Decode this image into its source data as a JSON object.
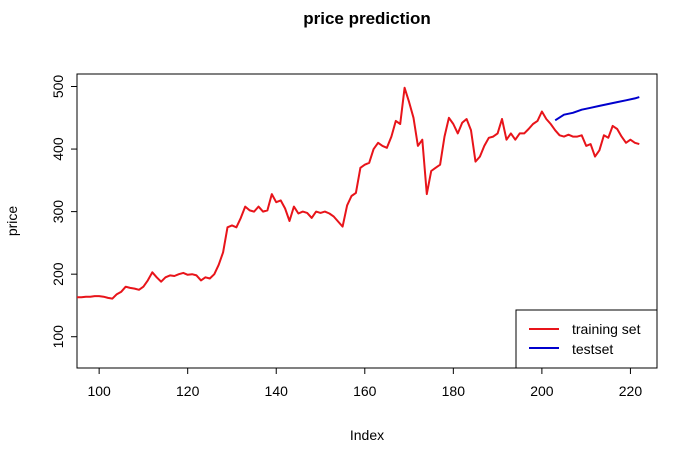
{
  "chart_data": {
    "type": "line",
    "title": "price prediction",
    "xlabel": "Index",
    "ylabel": "price",
    "xlim": [
      95,
      226
    ],
    "ylim": [
      50,
      520
    ],
    "xticks": [
      100,
      120,
      140,
      160,
      180,
      200,
      220
    ],
    "yticks": [
      100,
      200,
      300,
      400,
      500
    ],
    "grid": false,
    "legend_position": "bottom-right",
    "series": [
      {
        "name": "training set",
        "color": "#e8141a",
        "points": [
          [
            95,
            163
          ],
          [
            96,
            163
          ],
          [
            97,
            164
          ],
          [
            98,
            164
          ],
          [
            99,
            165
          ],
          [
            100,
            165
          ],
          [
            101,
            164
          ],
          [
            102,
            162
          ],
          [
            103,
            161
          ],
          [
            104,
            168
          ],
          [
            105,
            172
          ],
          [
            106,
            180
          ],
          [
            107,
            178
          ],
          [
            108,
            177
          ],
          [
            109,
            175
          ],
          [
            110,
            180
          ],
          [
            111,
            190
          ],
          [
            112,
            203
          ],
          [
            113,
            195
          ],
          [
            114,
            188
          ],
          [
            115,
            195
          ],
          [
            116,
            198
          ],
          [
            117,
            197
          ],
          [
            118,
            200
          ],
          [
            119,
            202
          ],
          [
            120,
            199
          ],
          [
            121,
            200
          ],
          [
            122,
            198
          ],
          [
            123,
            190
          ],
          [
            124,
            195
          ],
          [
            125,
            193
          ],
          [
            126,
            200
          ],
          [
            127,
            215
          ],
          [
            128,
            235
          ],
          [
            129,
            275
          ],
          [
            130,
            278
          ],
          [
            131,
            275
          ],
          [
            132,
            290
          ],
          [
            133,
            308
          ],
          [
            134,
            302
          ],
          [
            135,
            300
          ],
          [
            136,
            308
          ],
          [
            137,
            300
          ],
          [
            138,
            302
          ],
          [
            139,
            328
          ],
          [
            140,
            315
          ],
          [
            141,
            318
          ],
          [
            142,
            305
          ],
          [
            143,
            285
          ],
          [
            144,
            308
          ],
          [
            145,
            297
          ],
          [
            146,
            300
          ],
          [
            147,
            298
          ],
          [
            148,
            290
          ],
          [
            149,
            300
          ],
          [
            150,
            298
          ],
          [
            151,
            300
          ],
          [
            152,
            297
          ],
          [
            153,
            292
          ],
          [
            154,
            284
          ],
          [
            155,
            276
          ],
          [
            156,
            310
          ],
          [
            157,
            325
          ],
          [
            158,
            330
          ],
          [
            159,
            370
          ],
          [
            160,
            375
          ],
          [
            161,
            378
          ],
          [
            162,
            400
          ],
          [
            163,
            410
          ],
          [
            164,
            405
          ],
          [
            165,
            402
          ],
          [
            166,
            420
          ],
          [
            167,
            445
          ],
          [
            168,
            440
          ],
          [
            169,
            498
          ],
          [
            170,
            475
          ],
          [
            171,
            450
          ],
          [
            172,
            405
          ],
          [
            173,
            415
          ],
          [
            174,
            328
          ],
          [
            175,
            365
          ],
          [
            176,
            370
          ],
          [
            177,
            375
          ],
          [
            178,
            420
          ],
          [
            179,
            450
          ],
          [
            180,
            440
          ],
          [
            181,
            425
          ],
          [
            182,
            442
          ],
          [
            183,
            448
          ],
          [
            184,
            430
          ],
          [
            185,
            380
          ],
          [
            186,
            388
          ],
          [
            187,
            405
          ],
          [
            188,
            418
          ],
          [
            189,
            420
          ],
          [
            190,
            425
          ],
          [
            191,
            448
          ],
          [
            192,
            415
          ],
          [
            193,
            425
          ],
          [
            194,
            415
          ],
          [
            195,
            425
          ],
          [
            196,
            425
          ],
          [
            197,
            432
          ],
          [
            198,
            440
          ],
          [
            199,
            445
          ],
          [
            200,
            460
          ],
          [
            201,
            448
          ],
          [
            202,
            440
          ],
          [
            203,
            430
          ],
          [
            204,
            422
          ],
          [
            205,
            420
          ],
          [
            206,
            423
          ],
          [
            207,
            420
          ],
          [
            208,
            420
          ],
          [
            209,
            422
          ],
          [
            210,
            405
          ],
          [
            211,
            408
          ],
          [
            212,
            388
          ],
          [
            213,
            398
          ],
          [
            214,
            422
          ],
          [
            215,
            418
          ],
          [
            216,
            437
          ],
          [
            217,
            432
          ],
          [
            218,
            420
          ],
          [
            219,
            410
          ],
          [
            220,
            415
          ],
          [
            221,
            410
          ],
          [
            222,
            408
          ]
        ]
      },
      {
        "name": "testset",
        "color": "#0000cd",
        "points": [
          [
            203,
            446
          ],
          [
            205,
            455
          ],
          [
            207,
            458
          ],
          [
            209,
            463
          ],
          [
            211,
            466
          ],
          [
            213,
            469
          ],
          [
            215,
            472
          ],
          [
            217,
            475
          ],
          [
            219,
            478
          ],
          [
            221,
            481
          ],
          [
            222,
            483
          ]
        ]
      }
    ]
  }
}
